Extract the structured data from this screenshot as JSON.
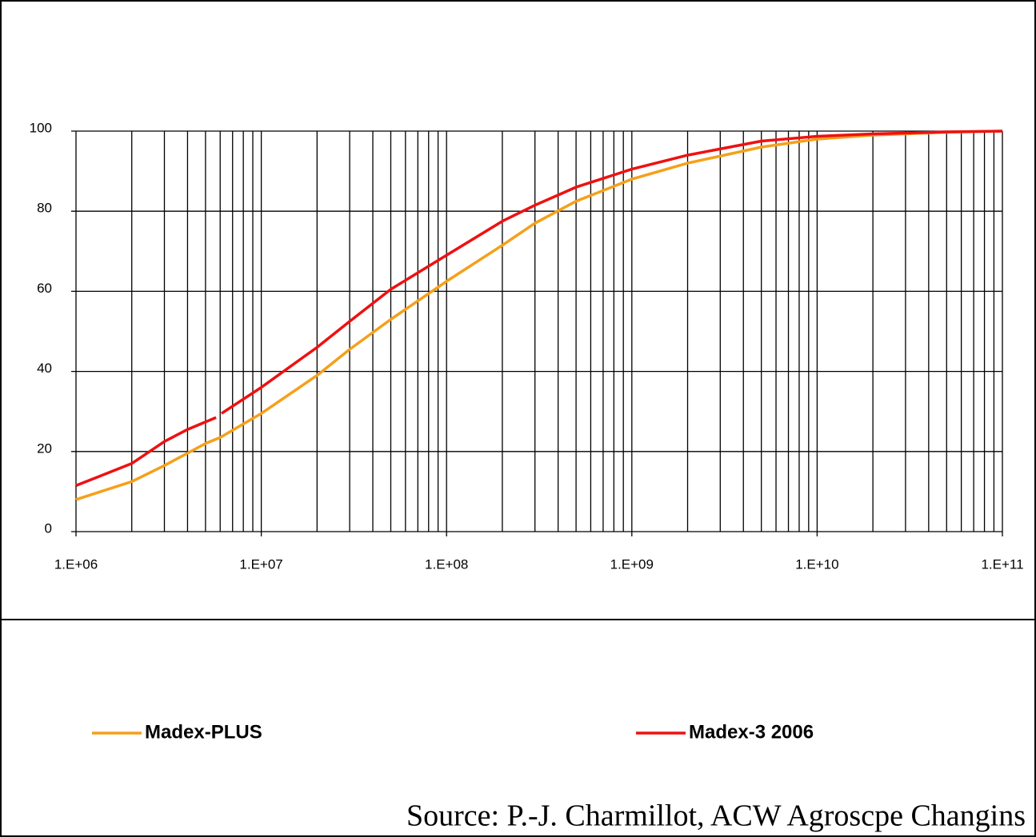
{
  "chart_data": {
    "type": "line",
    "xlog": true,
    "grid": true,
    "xlim": [
      1000000,
      100000000000
    ],
    "xticks": [
      {
        "value": 1000000,
        "label": "1.E+06"
      },
      {
        "value": 10000000,
        "label": "1.E+07"
      },
      {
        "value": 100000000,
        "label": "1.E+08"
      },
      {
        "value": 1000000000,
        "label": "1.E+09"
      },
      {
        "value": 10000000000,
        "label": "1.E+10"
      },
      {
        "value": 100000000000,
        "label": "1.E+11"
      }
    ],
    "ylim": [
      0,
      100
    ],
    "yticks": [
      0,
      20,
      40,
      60,
      80,
      100
    ],
    "series": [
      {
        "name": "Madex-PLUS",
        "color": "#f5a01a",
        "x": [
          1000000,
          2000000,
          3000000,
          5000000,
          6000000,
          10000000,
          20000000,
          30000000,
          50000000,
          100000000,
          200000000,
          300000000,
          500000000,
          1000000000,
          2000000000,
          5000000000,
          10000000000,
          20000000000,
          50000000000,
          100000000000
        ],
        "values": [
          8,
          12.5,
          16.5,
          22,
          23.5,
          29.5,
          39,
          45.5,
          53,
          62.5,
          71.5,
          77,
          82.5,
          88,
          92,
          96,
          98,
          99,
          99.7,
          100
        ]
      },
      {
        "name": "Madex-3 2006",
        "color": "#ee1111",
        "x": [
          1000000,
          2000000,
          3000000,
          4000000,
          5700000,
          5900000,
          6100000,
          10000000,
          20000000,
          30000000,
          50000000,
          100000000,
          200000000,
          300000000,
          500000000,
          1000000000,
          2000000000,
          5000000000,
          10000000000,
          20000000000,
          50000000000,
          100000000000
        ],
        "values": [
          11.5,
          17,
          22.5,
          25.5,
          28.5,
          null,
          29.5,
          36,
          46,
          52.5,
          60.5,
          69,
          77.5,
          81.5,
          86,
          90.5,
          94,
          97.5,
          98.7,
          99.3,
          99.8,
          100
        ]
      }
    ]
  },
  "source": "Source: P.-J. Charmillot, ACW Agroscpe Changins"
}
